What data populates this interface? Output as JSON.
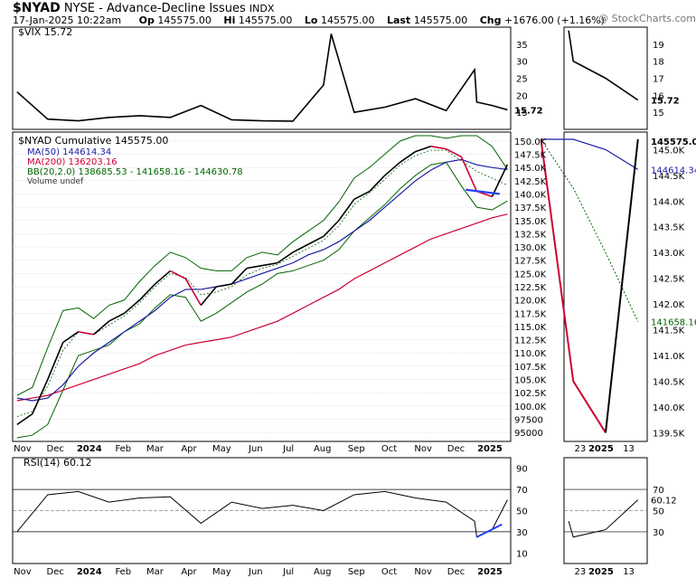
{
  "header": {
    "symbol": "$NYAD",
    "exchange": "NYSE - Advance-Decline Issues",
    "index": "INDX",
    "date": "17-Jan-2025 10:22am",
    "op_label": "Op",
    "op": "145575.00",
    "hi_label": "Hi",
    "hi": "145575.00",
    "lo_label": "Lo",
    "lo": "145575.00",
    "last_label": "Last",
    "last": "145575.00",
    "chg_label": "Chg",
    "chg": "+1676.00 (+1.16%)",
    "watermark": "@ StockCharts.com"
  },
  "vix_panel": {
    "legend": "$VIX 15.72",
    "current_label": "15.72",
    "ticks": [
      "35",
      "30",
      "25",
      "20",
      "15"
    ]
  },
  "main_panel": {
    "legend_price": "$NYAD Cumulative 145575.00",
    "legend_ma50": "MA(50) 144614.34",
    "legend_ma200": "MA(200) 136203.16",
    "legend_bb": "BB(20,2.0) 138685.53 - 141658.16 - 144630.78",
    "legend_volume": "Volume undef",
    "ticks": [
      "150.0K",
      "147.5K",
      "145.0K",
      "142.5K",
      "140.0K",
      "137.5K",
      "135.0K",
      "132.5K",
      "130.0K",
      "127.5K",
      "125.0K",
      "122.5K",
      "120.0K",
      "117.5K",
      "115.0K",
      "112.5K",
      "110.0K",
      "107.5K",
      "105.0K",
      "102.5K",
      "100.0K",
      "97500",
      "95000"
    ]
  },
  "rsi_panel": {
    "legend": "RSI(14) 60.12",
    "ticks": [
      "90",
      "70",
      "50",
      "30",
      "10"
    ],
    "current_label": "60.12"
  },
  "zoom_panel": {
    "vix_ticks": [
      "19",
      "18",
      "17",
      "16",
      "15"
    ],
    "main_ticks": [
      "145.0K",
      "144.5K",
      "144.0K",
      "143.5K",
      "143.0K",
      "142.5K",
      "142.0K",
      "141.5K",
      "141.0K",
      "140.5K",
      "140.0K",
      "139.5K"
    ],
    "price_label": "145575.00",
    "ma50_label": "144614.34",
    "bb_mid_label": "141658.16",
    "rsi_ticks": [
      "70",
      "50",
      "30"
    ],
    "rsi_label": "60.12",
    "x_labels": [
      "23",
      "2025",
      "13"
    ]
  },
  "x_axis_labels": [
    "Nov",
    "Dec",
    "2024",
    "Feb",
    "Mar",
    "Apr",
    "May",
    "Jun",
    "Jul",
    "Aug",
    "Sep",
    "Oct",
    "Nov",
    "Dec",
    "2025"
  ],
  "colors": {
    "price_up": "#000000",
    "price_down": "#cc0033",
    "ma50": "#1a1aa6",
    "ma200": "#cc0033",
    "bb": "#006400",
    "trendline": "#2040ff",
    "grid": "#bbbbbb"
  },
  "chart_data": {
    "type": "line",
    "x": [
      "2023-10-27",
      "2023-11-10",
      "2023-11-24",
      "2023-12-08",
      "2023-12-22",
      "2024-01-05",
      "2024-01-19",
      "2024-02-02",
      "2024-02-16",
      "2024-03-01",
      "2024-03-15",
      "2024-03-29",
      "2024-04-12",
      "2024-04-26",
      "2024-05-10",
      "2024-05-24",
      "2024-06-07",
      "2024-06-21",
      "2024-07-05",
      "2024-07-19",
      "2024-08-02",
      "2024-08-16",
      "2024-08-30",
      "2024-09-13",
      "2024-09-27",
      "2024-10-11",
      "2024-10-25",
      "2024-11-08",
      "2024-11-22",
      "2024-12-06",
      "2024-12-20",
      "2025-01-03",
      "2025-01-17"
    ],
    "series": [
      {
        "name": "$NYAD Cumulative",
        "values": [
          96500,
          98500,
          105000,
          112000,
          114000,
          113500,
          116000,
          117500,
          120000,
          123000,
          125500,
          124000,
          119000,
          122500,
          123000,
          126000,
          126500,
          127000,
          129000,
          130500,
          132000,
          135000,
          139000,
          140500,
          143500,
          146000,
          148000,
          149000,
          148500,
          147000,
          140500,
          139500,
          145575
        ]
      },
      {
        "name": "MA(50)",
        "values": [
          101500,
          101000,
          101500,
          104000,
          107500,
          110000,
          112000,
          114000,
          116000,
          118000,
          120500,
          122000,
          122000,
          122500,
          123000,
          124000,
          125000,
          126000,
          127000,
          128500,
          129500,
          131000,
          133000,
          135000,
          137500,
          140000,
          142500,
          144500,
          146000,
          146500,
          145500,
          145000,
          144614
        ]
      },
      {
        "name": "MA(200)",
        "values": [
          101000,
          101500,
          102000,
          103000,
          104000,
          105000,
          106000,
          107000,
          108000,
          109500,
          110500,
          111500,
          112000,
          112500,
          113000,
          114000,
          115000,
          116000,
          117500,
          119000,
          120500,
          122000,
          124000,
          125500,
          127000,
          128500,
          130000,
          131500,
          132500,
          133500,
          134500,
          135500,
          136203
        ]
      },
      {
        "name": "BB upper",
        "values": [
          102000,
          103500,
          111000,
          118000,
          118500,
          116500,
          119000,
          120000,
          123500,
          126500,
          129000,
          128000,
          126000,
          125500,
          125500,
          128000,
          129000,
          128500,
          131000,
          133000,
          135000,
          138500,
          143000,
          145000,
          147500,
          150000,
          151000,
          151000,
          150500,
          151000,
          151000,
          149000,
          144631
        ]
      },
      {
        "name": "BB lower",
        "values": [
          94000,
          94500,
          96500,
          103000,
          109500,
          110500,
          111500,
          114000,
          115500,
          118500,
          121000,
          120500,
          116000,
          117500,
          119500,
          121500,
          123000,
          125000,
          125500,
          126500,
          127500,
          129500,
          133000,
          135500,
          138000,
          141000,
          143500,
          145500,
          146000,
          141500,
          137500,
          137000,
          138686
        ]
      }
    ],
    "vix": {
      "name": "$VIX",
      "dates": [
        "2023-10-27",
        "2023-11-24",
        "2023-12-22",
        "2024-01-19",
        "2024-02-16",
        "2024-03-15",
        "2024-04-12",
        "2024-05-10",
        "2024-06-07",
        "2024-07-05",
        "2024-08-02",
        "2024-08-09",
        "2024-08-30",
        "2024-09-27",
        "2024-10-25",
        "2024-11-22",
        "2024-12-18",
        "2024-12-20",
        "2025-01-03",
        "2025-01-17"
      ],
      "values": [
        21,
        13,
        12.5,
        13.5,
        14,
        13.5,
        17,
        12.8,
        12.5,
        12.4,
        23,
        38,
        15,
        16.5,
        19,
        15.5,
        27.5,
        18,
        17,
        15.72
      ]
    },
    "rsi": {
      "name": "RSI(14)",
      "dates": [
        "2023-10-27",
        "2023-11-24",
        "2023-12-22",
        "2024-01-19",
        "2024-02-16",
        "2024-03-15",
        "2024-04-12",
        "2024-05-10",
        "2024-06-07",
        "2024-07-05",
        "2024-08-02",
        "2024-08-30",
        "2024-09-27",
        "2024-10-25",
        "2024-11-22",
        "2024-12-18",
        "2024-12-20",
        "2025-01-03",
        "2025-01-17"
      ],
      "values": [
        30,
        65,
        68,
        58,
        62,
        63,
        38,
        58,
        52,
        55,
        50,
        65,
        68,
        62,
        58,
        40,
        25,
        32,
        60.12
      ]
    },
    "ylim": [
      94000,
      151000
    ],
    "grid": true,
    "legend_position": "top-left"
  }
}
